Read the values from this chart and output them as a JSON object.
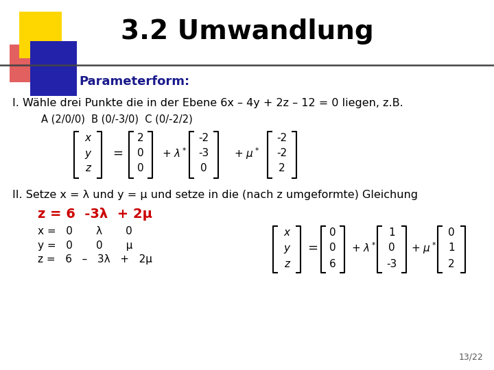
{
  "title": "3.2 Umwandlung",
  "subtitle": "Parameterform:",
  "bg_color": "#ffffff",
  "title_color": "#000000",
  "subtitle_color": "#1a1a8c",
  "red_color": "#cc0000",
  "page_number": "13/22",
  "line1": "I. Wähle drei Punkte die in der Ebene 6x – 4y + 2z – 12 = 0 liegen, z.B.",
  "points_label": "A (2/0/0)  B (0/-3/0)  C (0/-2/2)",
  "line2": "II. Setze x = λ und y = μ und setze in die (nach z umgeformte) Gleichung",
  "red_formula": "z = 6  -3λ  + 2μ",
  "eq_x": "x =   0       λ       0",
  "eq_y": "y =   0       0       μ",
  "eq_z": "z =   6   –   3λ   +   2μ"
}
